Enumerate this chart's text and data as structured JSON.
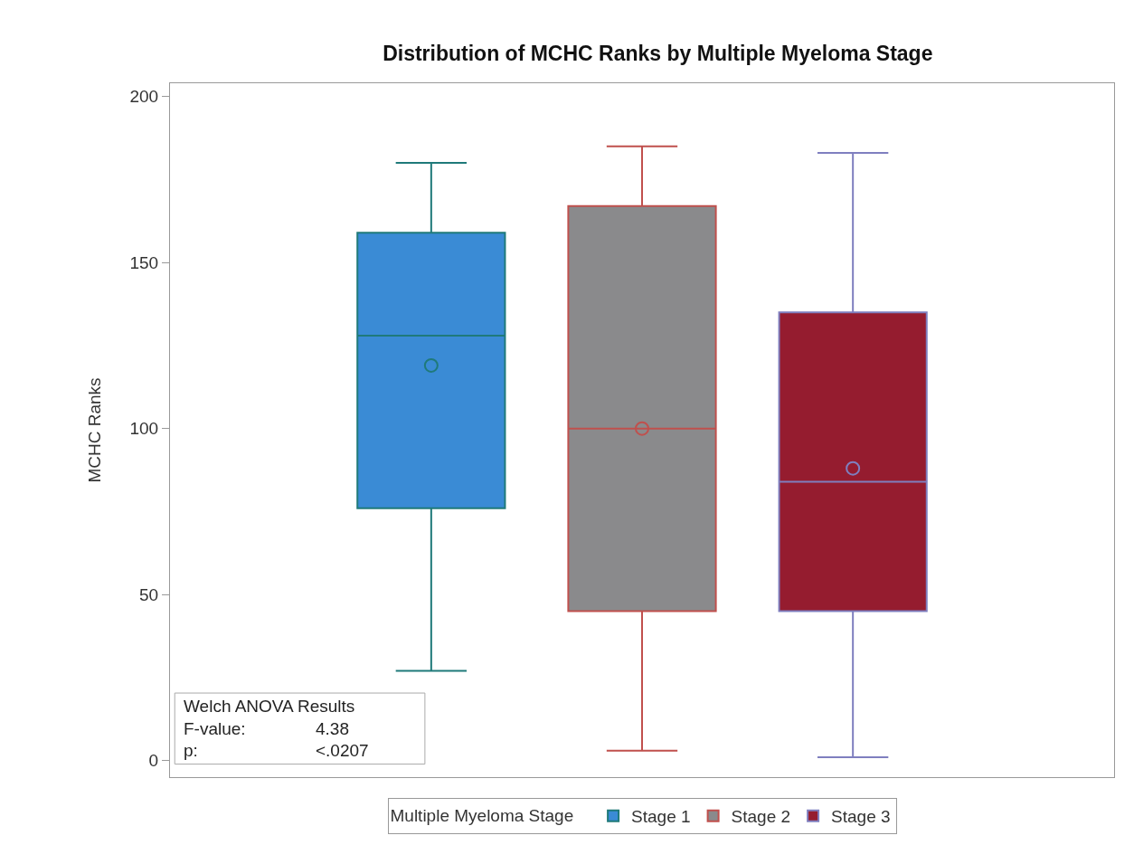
{
  "chart_data": {
    "type": "box",
    "title": "Distribution of MCHC Ranks by Multiple Myeloma Stage",
    "ylabel": "MCHC Ranks",
    "legend_title": "Multiple Myeloma Stage",
    "categories": [
      null
    ],
    "series": [
      {
        "name": "Stage 1",
        "color": "#3a8bd5",
        "boxes": [
          {
            "low": 27,
            "q1": 76,
            "median": 128,
            "q3": 159,
            "high": 180,
            "mean": 119
          }
        ]
      },
      {
        "name": "Stage 2",
        "color": "#8a8a8c",
        "boxes": [
          {
            "low": 3,
            "q1": 45,
            "median": 100,
            "q3": 167,
            "high": 185,
            "mean": 100
          }
        ]
      },
      {
        "name": "Stage 3",
        "color": "#951c2f",
        "boxes": [
          {
            "low": 1,
            "q1": 45,
            "median": 84,
            "q3": 135,
            "high": 183,
            "mean": 88
          }
        ]
      }
    ],
    "annotations": [
      "Welch ANOVA Results",
      "F-value:",
      "4.38",
      "p:",
      "<.0207"
    ],
    "ylim": [
      -5,
      204
    ],
    "yticks": [
      0,
      50,
      100,
      150,
      200
    ],
    "grid": false,
    "legend": "bottom",
    "tick_labels": "y",
    "marker": "circle"
  }
}
